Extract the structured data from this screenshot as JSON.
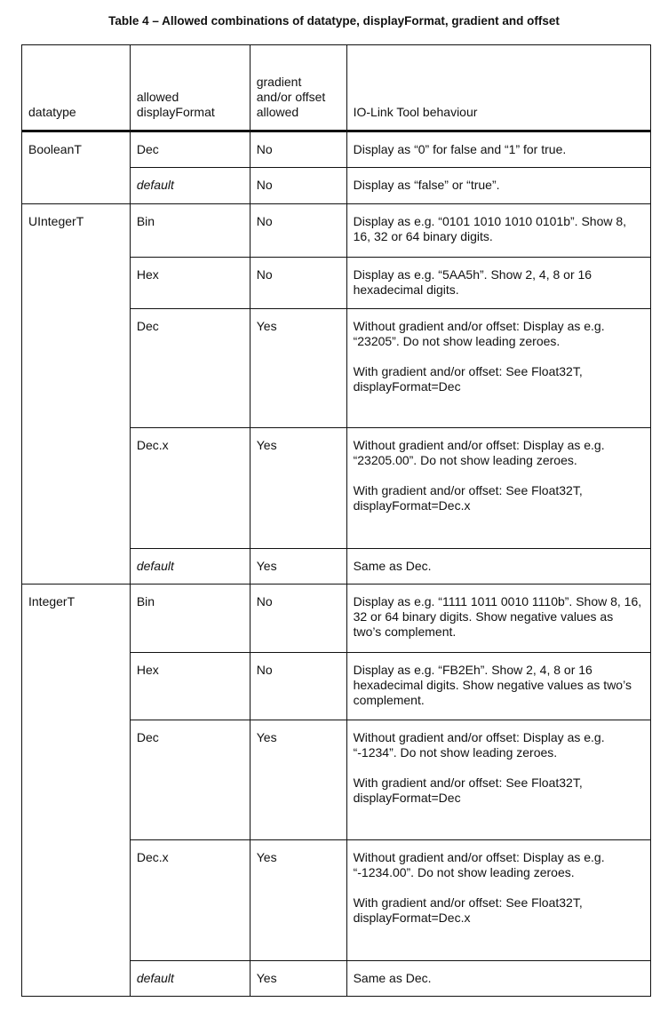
{
  "title": "Table 4 – Allowed combinations of datatype, displayFormat, gradient and offset",
  "headers": [
    "datatype",
    "allowed displayFormat",
    "gradient and/or offset allowed",
    "IO-Link Tool behaviour"
  ],
  "groups": [
    {
      "datatype": "BooleanT",
      "rows": [
        {
          "format": "Dec",
          "allowed": "No",
          "behaviour": [
            "Display as “0” for false and “1” for true."
          ],
          "h": 41
        },
        {
          "format": "default",
          "italic": true,
          "allowed": "No",
          "behaviour": [
            "Display as “false” or “true”."
          ],
          "h": 41
        }
      ]
    },
    {
      "datatype": "UIntegerT",
      "rows": [
        {
          "format": "Bin",
          "allowed": "No",
          "behaviour": [
            "Display as e.g. “0101 1010 1010 0101b”. Show 8, 16, 32 or 64 binary digits."
          ],
          "h": 60
        },
        {
          "format": "Hex",
          "allowed": "No",
          "behaviour": [
            "Display as e.g. “5AA5h”. Show 2, 4, 8 or 16 hexadecimal digits."
          ],
          "h": 58
        },
        {
          "format": "Dec",
          "allowed": "Yes",
          "behaviour": [
            "Without gradient and/or offset: Display as e.g. “23205”. Do not show leading zeroes.",
            "With gradient and/or offset: See Float32T, displayFormat=Dec"
          ],
          "h": 134
        },
        {
          "format": "Dec.x",
          "allowed": "Yes",
          "behaviour": [
            "Without gradient and/or offset: Display as e.g. “23205.00”. Do not show leading zeroes.",
            "With gradient and/or offset: See Float32T, displayFormat=Dec.x"
          ],
          "h": 136
        },
        {
          "format": "default",
          "italic": true,
          "allowed": "Yes",
          "behaviour": [
            "Same as Dec."
          ],
          "h": 40
        }
      ]
    },
    {
      "datatype": "IntegerT",
      "rows": [
        {
          "format": "Bin",
          "allowed": "No",
          "behaviour": [
            "Display as e.g. “1111 1011 0010 1110b”. Show 8, 16, 32 or 64 binary digits. Show negative values as two’s complement."
          ],
          "h": 77
        },
        {
          "format": "Hex",
          "allowed": "No",
          "behaviour": [
            "Display as e.g. “FB2Eh”. Show 2, 4, 8 or 16 hexadecimal digits. Show negative values as two’s complement."
          ],
          "h": 76
        },
        {
          "format": "Dec",
          "allowed": "Yes",
          "behaviour": [
            "Without gradient and/or offset: Display as e.g. “-1234”. Do not show leading zeroes.",
            "With gradient and/or offset: See Float32T, displayFormat=Dec"
          ],
          "h": 135
        },
        {
          "format": "Dec.x",
          "allowed": "Yes",
          "behaviour": [
            "Without gradient and/or offset: Display as e.g. “-1234.00”. Do not show leading zeroes.",
            "With gradient and/or offset: See Float32T, displayFormat=Dec.x"
          ],
          "h": 136
        },
        {
          "format": "default",
          "italic": true,
          "allowed": "Yes",
          "behaviour": [
            "Same as Dec."
          ],
          "h": 40
        }
      ]
    }
  ]
}
